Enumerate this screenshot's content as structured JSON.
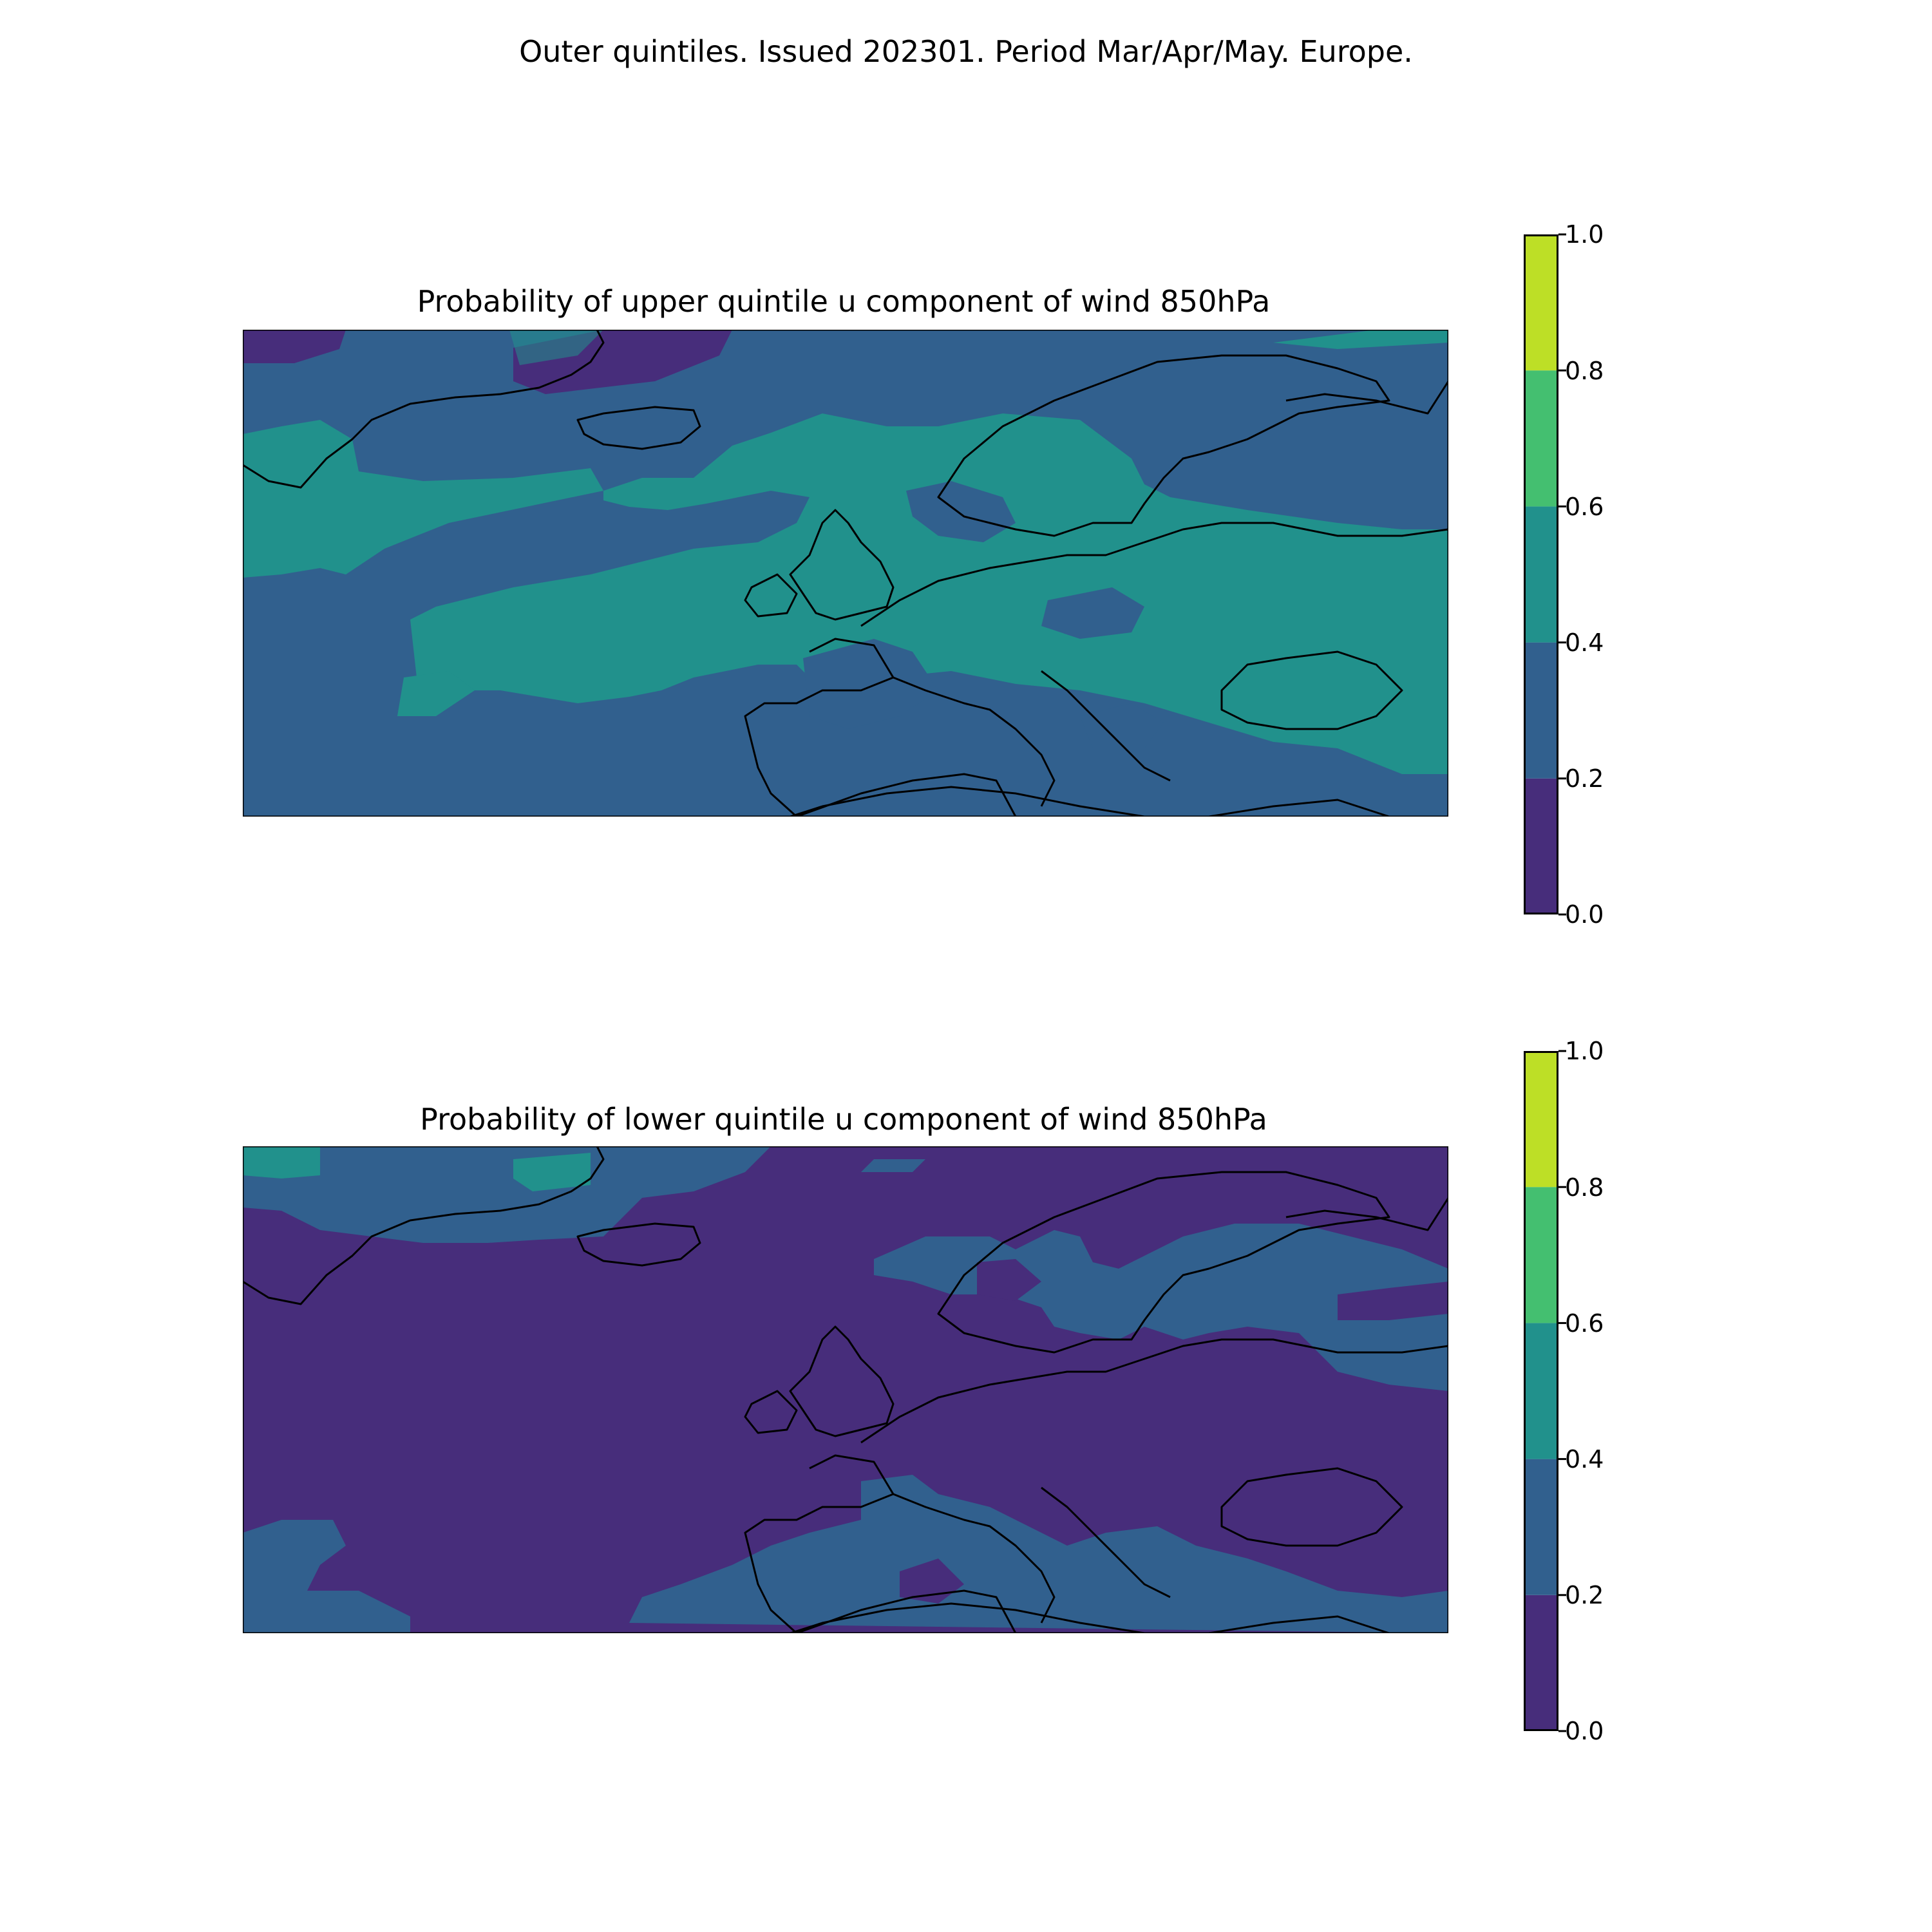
{
  "figure": {
    "suptitle": "Outer quintiles. Issued 202301. Period Mar/Apr/May. Europe."
  },
  "panels": [
    {
      "title": "Probability of upper quintile u component of wind 850hPa",
      "background_level": 1
    },
    {
      "title": "Probability of lower quintile u component of wind 850hPa",
      "background_level": 0
    }
  ],
  "colorbar": {
    "ticks": [
      "0.0",
      "0.2",
      "0.4",
      "0.6",
      "0.8",
      "1.0"
    ],
    "levels": [
      {
        "range": [
          0.0,
          0.2
        ],
        "color": "#472d7b"
      },
      {
        "range": [
          0.2,
          0.4
        ],
        "color": "#31608e"
      },
      {
        "range": [
          0.4,
          0.6
        ],
        "color": "#21918c"
      },
      {
        "range": [
          0.6,
          0.8
        ],
        "color": "#44bf70"
      },
      {
        "range": [
          0.8,
          1.0
        ],
        "color": "#bddf26"
      }
    ]
  },
  "map": {
    "region": "Europe",
    "coastline_color": "#000000"
  }
}
